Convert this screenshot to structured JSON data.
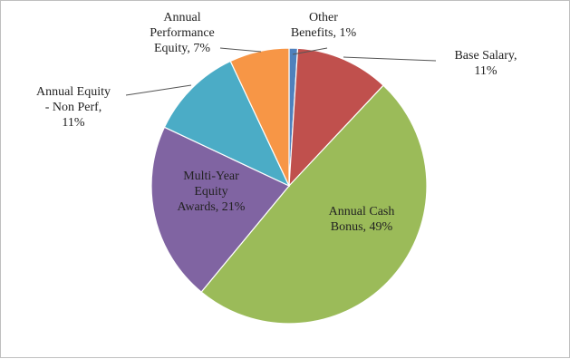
{
  "chart_data": {
    "type": "pie",
    "title": "",
    "slices": [
      {
        "name": "Other Benefits",
        "value": 1,
        "color": "#4f81bd",
        "label": [
          "Other",
          "Benefits, 1%"
        ]
      },
      {
        "name": "Base Salary",
        "value": 11,
        "color": "#c0504d",
        "label": [
          "Base Salary,",
          "11%"
        ]
      },
      {
        "name": "Annual Cash Bonus",
        "value": 49,
        "color": "#9bbb59",
        "label": [
          "Annual Cash",
          "Bonus, 49%"
        ]
      },
      {
        "name": "Multi-Year Equity Awards",
        "value": 21,
        "color": "#8064a2",
        "label": [
          "Multi-Year",
          "Equity",
          "Awards, 21%"
        ]
      },
      {
        "name": "Annual Equity - Non Perf",
        "value": 11,
        "color": "#4bacc6",
        "label": [
          "Annual Equity",
          "- Non Perf,",
          "11%"
        ]
      },
      {
        "name": "Annual Performance Equity",
        "value": 7,
        "color": "#f79646",
        "label": [
          "Annual",
          "Performance",
          "Equity, 7%"
        ]
      }
    ],
    "legend": "none",
    "data_labels": "category-and-percent"
  }
}
